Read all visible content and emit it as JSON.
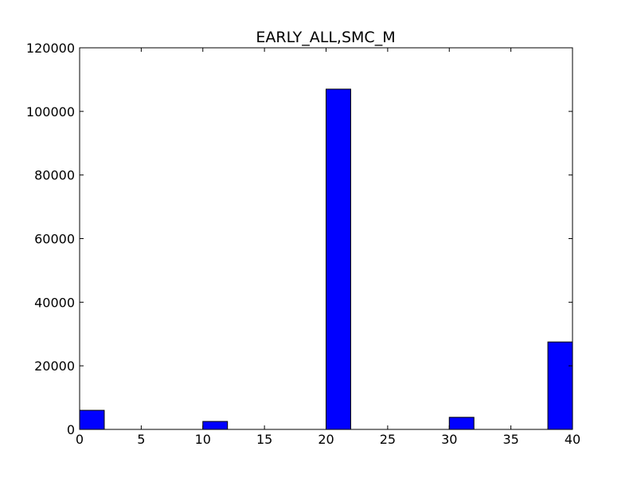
{
  "chart_data": {
    "type": "bar",
    "title": "EARLY_ALL,SMC_M",
    "xlabel": "",
    "ylabel": "",
    "xlim": [
      0,
      40
    ],
    "ylim": [
      0,
      120000
    ],
    "xticks": [
      0,
      5,
      10,
      15,
      20,
      25,
      30,
      35,
      40
    ],
    "yticks": [
      0,
      20000,
      40000,
      60000,
      80000,
      100000,
      120000
    ],
    "xtick_labels": [
      "0",
      "5",
      "10",
      "15",
      "20",
      "25",
      "30",
      "35",
      "40"
    ],
    "ytick_labels": [
      "0",
      "20000",
      "40000",
      "60000",
      "80000",
      "100000",
      "120000"
    ],
    "grid": false,
    "bar_color": "#0000ff",
    "bar_edge_color": "#000000",
    "bins": [
      {
        "x0": 0,
        "x1": 2,
        "value": 6000
      },
      {
        "x0": 10,
        "x1": 12,
        "value": 2500
      },
      {
        "x0": 20,
        "x1": 22,
        "value": 107000
      },
      {
        "x0": 30,
        "x1": 32,
        "value": 3800
      },
      {
        "x0": 38,
        "x1": 40,
        "value": 27500
      }
    ]
  }
}
